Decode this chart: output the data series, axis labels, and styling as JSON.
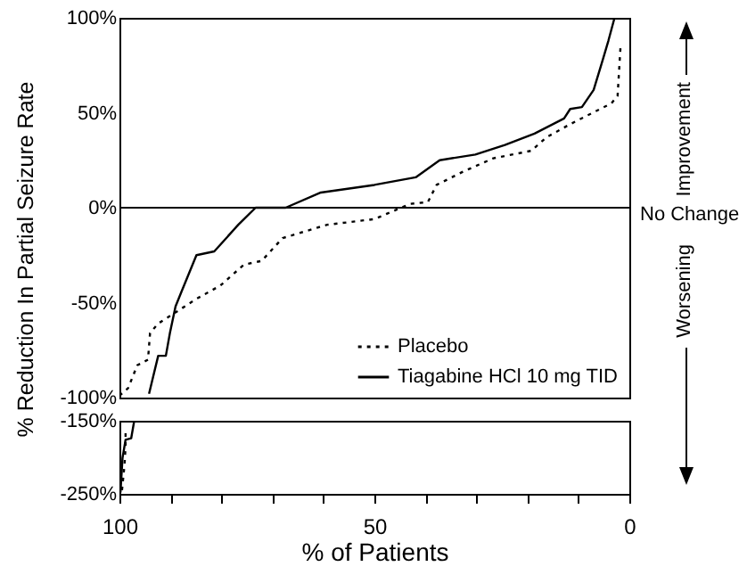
{
  "chart_data": [
    {
      "type": "line",
      "ylabel": "% Reduction In Partial Seizure Rate",
      "xlim": [
        100,
        0
      ],
      "ylim": [
        -100,
        100
      ],
      "xticks": [
        {
          "value": 100,
          "label": null
        },
        {
          "value": 50,
          "label": null
        },
        {
          "value": 0,
          "label": null
        }
      ],
      "yticks": [
        {
          "value": 100,
          "label": "100%"
        },
        {
          "value": 50,
          "label": "50%"
        },
        {
          "value": 0,
          "label": "0%"
        },
        {
          "value": -50,
          "label": "-50%"
        },
        {
          "value": -100,
          "label": "-100%"
        }
      ],
      "tick_labels": "y",
      "legend": "bottom right",
      "grid": false,
      "ref_lines": [
        {
          "axis": "y",
          "value": 0,
          "label": "No Change"
        }
      ],
      "annotations": [
        "Improvement",
        "Worsening"
      ],
      "series": [
        {
          "name": "Placebo",
          "color": "#000000",
          "line_style": "dotted",
          "x": [
            100,
            98.3,
            96.5,
            94.4,
            94,
            92.4,
            89.5,
            84.9,
            80.2,
            75.6,
            72.1,
            68,
            59.3,
            50,
            43,
            39.5,
            37.8,
            32.6,
            26.7,
            19.2,
            16.3,
            11.6,
            3.5,
            2.3,
            1.7
          ],
          "values": [
            -99,
            -95,
            -83,
            -80,
            -66,
            -61,
            -56,
            -48,
            -41,
            -30,
            -28,
            -16,
            -9,
            -6,
            2,
            3,
            12,
            19,
            26,
            30,
            37,
            44,
            55,
            59,
            86
          ]
        },
        {
          "name": "Tiagabine HCl 10 mg TID",
          "color": "#000000",
          "line_style": "solid",
          "x": [
            94.2,
            92.4,
            90.9,
            90.1,
            89,
            87.8,
            84.9,
            81.4,
            76.7,
            73.3,
            67.4,
            60.5,
            50,
            41.9,
            37.2,
            30.2,
            24.4,
            18.6,
            12.8,
            11.6,
            9.3,
            7,
            5.2,
            4.1,
            2.9
          ],
          "values": [
            -98,
            -78,
            -78,
            -66,
            -52,
            -44,
            -25,
            -23,
            -9,
            0,
            0,
            8,
            12,
            16,
            25,
            28,
            33,
            39,
            47,
            52,
            53,
            62,
            78,
            88,
            100
          ]
        }
      ]
    },
    {
      "type": "line",
      "xlabel": "% of Patients",
      "xlim": [
        100,
        0
      ],
      "ylim": [
        -250,
        -150
      ],
      "xticks": [
        {
          "value": 100,
          "label": "100"
        },
        {
          "value": 90,
          "label": null
        },
        {
          "value": 80,
          "label": null
        },
        {
          "value": 70,
          "label": null
        },
        {
          "value": 60,
          "label": null
        },
        {
          "value": 50,
          "label": "50"
        },
        {
          "value": 40,
          "label": null
        },
        {
          "value": 30,
          "label": null
        },
        {
          "value": 20,
          "label": null
        },
        {
          "value": 10,
          "label": null
        },
        {
          "value": 0,
          "label": "0"
        }
      ],
      "yticks": [
        {
          "value": -150,
          "label": "-150%"
        },
        {
          "value": -250,
          "label": "-250%"
        }
      ],
      "grid": false,
      "series": [
        {
          "color": "#000000",
          "line_style": "dotted",
          "x": [
            99.5,
            99,
            98.8,
            98.8
          ],
          "values": [
            -245,
            -210,
            -185,
            -165
          ]
        },
        {
          "color": "#000000",
          "line_style": "solid",
          "x": [
            99.8,
            99.4,
            98.8,
            97.7,
            97.1
          ],
          "values": [
            -248,
            -201,
            -176,
            -174,
            -150
          ]
        }
      ]
    }
  ]
}
